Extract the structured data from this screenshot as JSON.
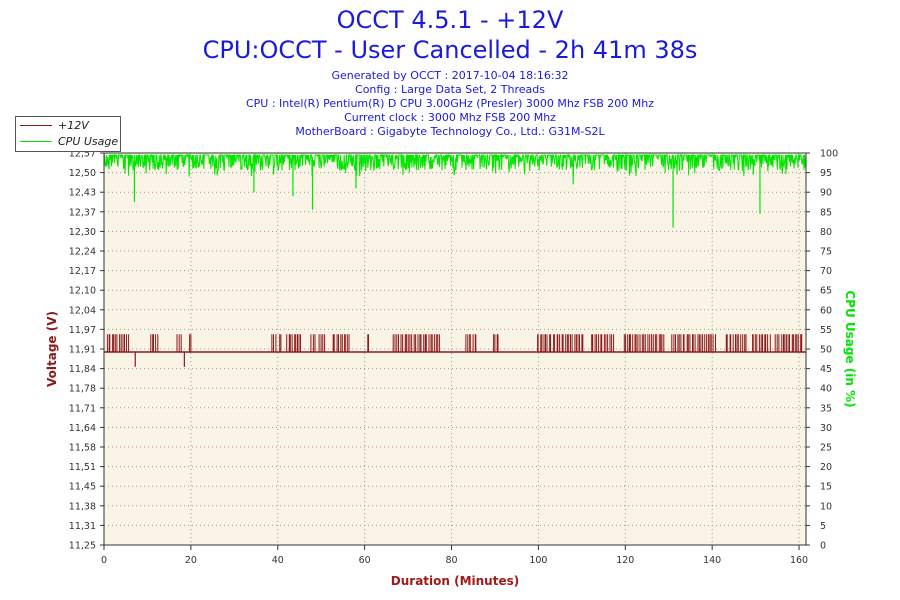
{
  "header": {
    "title": "OCCT 4.5.1 - +12V",
    "subtitle": "CPU:OCCT - User Cancelled - 2h 41m 38s",
    "info_lines": [
      "Generated by OCCT : 2017-10-04 18:16:32",
      "Config : Large Data Set, 2 Threads",
      "CPU : Intel(R) Pentium(R) D CPU 3.00GHz (Presler) 3000 Mhz FSB 200 Mhz",
      "Current clock : 3000 Mhz FSB 200 Mhz",
      "MotherBoard : Gigabyte Technology Co., Ltd.: G31M-S2L"
    ]
  },
  "legend": {
    "items": [
      {
        "label": "+12V",
        "color": "#8b1a1a"
      },
      {
        "label": "CPU Usage",
        "color": "#00e600"
      }
    ]
  },
  "chart_data": {
    "type": "line",
    "xlabel": "Duration (Minutes)",
    "ylabel_left": "Voltage (V)",
    "ylabel_right": "CPU Usage (in %)",
    "xlim": [
      0,
      161.6
    ],
    "ylim_left": [
      11.25,
      12.57
    ],
    "ylim_right": [
      0,
      100
    ],
    "x_ticks": [
      0,
      20,
      40,
      60,
      80,
      100,
      120,
      140,
      160
    ],
    "y_ticks_left": [
      "11,25",
      "11,31",
      "11,38",
      "11,45",
      "11,51",
      "11,58",
      "11,64",
      "11,71",
      "11,78",
      "11,84",
      "11,91",
      "11,97",
      "12,04",
      "12,10",
      "12,17",
      "12,24",
      "12,30",
      "12,37",
      "12,43",
      "12,50",
      "12,57"
    ],
    "y_ticks_right": [
      0,
      5,
      10,
      15,
      20,
      25,
      30,
      35,
      40,
      45,
      50,
      55,
      60,
      65,
      70,
      75,
      80,
      85,
      90,
      95,
      100
    ],
    "grid": true,
    "legend_position": "top-left",
    "colors": {
      "voltage": "#8b1a1a",
      "cpu": "#00e600",
      "plot_bg": "#f9f4e6",
      "axis_left": "#8b1a1a",
      "axis_right": "#00e600",
      "axis_x": "#a01a1a"
    },
    "series": [
      {
        "name": "+12V",
        "baseline": 11.9,
        "high": 11.96,
        "dips": [
          {
            "x": 7.2,
            "y": 11.85
          },
          {
            "x": 18.5,
            "y": 11.85
          }
        ],
        "high_ranges": [
          [
            0.5,
            5.8
          ],
          [
            10.5,
            12.5
          ],
          [
            16.8,
            18
          ],
          [
            19.5,
            20.2
          ],
          [
            38.5,
            39.8
          ],
          [
            40.2,
            41
          ],
          [
            42,
            45.6
          ],
          [
            47.5,
            48.7
          ],
          [
            49.5,
            51
          ],
          [
            52.5,
            56.8
          ],
          [
            60.5,
            61.2
          ],
          [
            66.5,
            77.5
          ],
          [
            83,
            86
          ],
          [
            89.5,
            91
          ],
          [
            99.5,
            110.6
          ],
          [
            112,
            117.5
          ],
          [
            119.5,
            129.2
          ],
          [
            130.6,
            141
          ],
          [
            143,
            148
          ],
          [
            149,
            153.5
          ],
          [
            154.5,
            161
          ]
        ]
      },
      {
        "name": "CPU Usage",
        "typical": 99.5,
        "spikes": [
          {
            "x": 7,
            "y": 87.5
          },
          {
            "x": 34.5,
            "y": 90
          },
          {
            "x": 43.5,
            "y": 89
          },
          {
            "x": 48,
            "y": 85.5
          },
          {
            "x": 58,
            "y": 91
          },
          {
            "x": 108,
            "y": 92
          },
          {
            "x": 131,
            "y": 81
          },
          {
            "x": 151,
            "y": 84.5
          }
        ]
      }
    ]
  }
}
